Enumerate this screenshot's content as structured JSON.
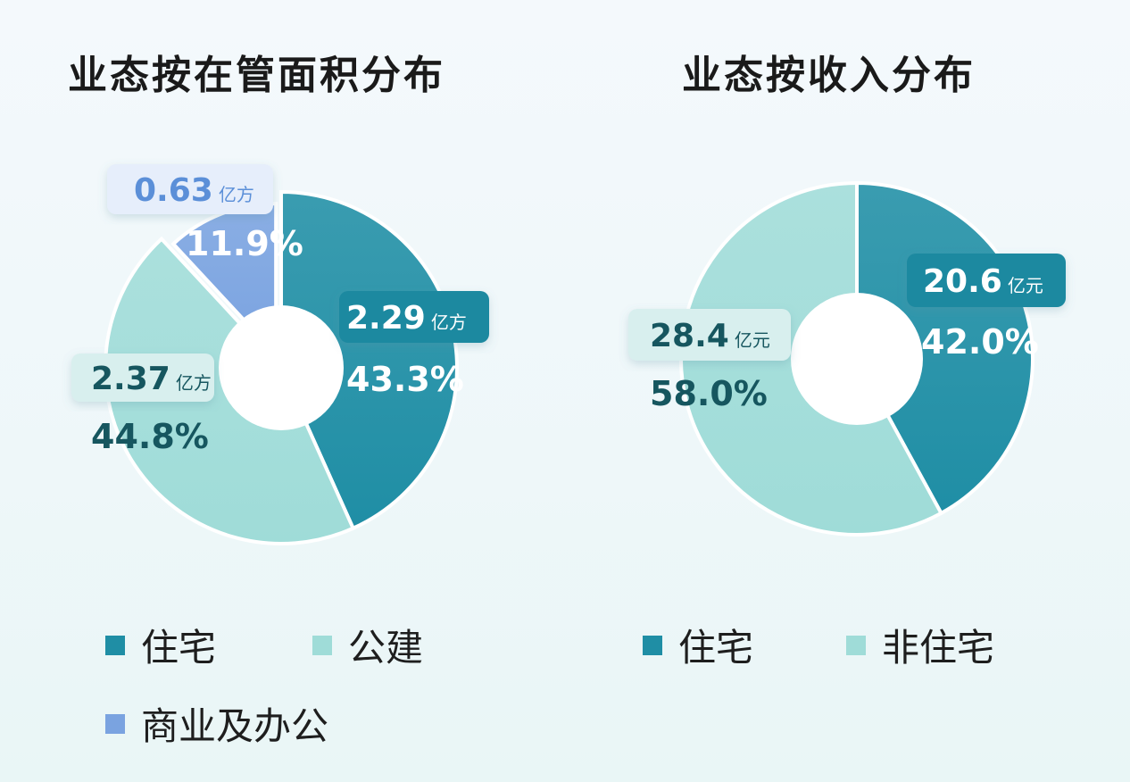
{
  "colors": {
    "residential": "#1f8ea5",
    "public": "#9fdcd8",
    "commercial": "#7aa3e0"
  },
  "chart_data": [
    {
      "type": "pie",
      "title": "业态按在管面积分布",
      "unit": "亿方",
      "slices": [
        {
          "label": "住宅",
          "value": 2.29,
          "value_text": "2.29",
          "percent": "43.3%"
        },
        {
          "label": "公建",
          "value": 2.37,
          "value_text": "2.37",
          "percent": "44.8%"
        },
        {
          "label": "商业及办公",
          "value": 0.63,
          "value_text": "0.63",
          "percent": "11.9%"
        }
      ]
    },
    {
      "type": "pie",
      "title": "业态按收入分布",
      "unit": "亿元",
      "slices": [
        {
          "label": "住宅",
          "value": 20.6,
          "value_text": "20.6",
          "percent": "42.0%"
        },
        {
          "label": "非住宅",
          "value": 28.4,
          "value_text": "28.4",
          "percent": "58.0%"
        }
      ]
    }
  ]
}
